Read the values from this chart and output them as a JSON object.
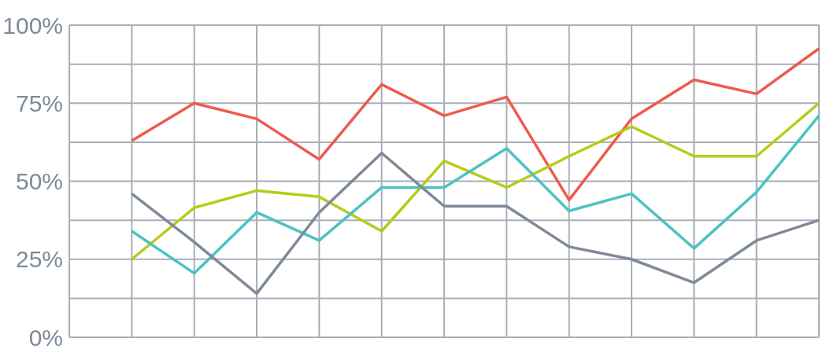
{
  "chart_data": {
    "type": "line",
    "categories": [
      null,
      null,
      null,
      null,
      null,
      null,
      null,
      null,
      null,
      null,
      null,
      null
    ],
    "series": [
      {
        "color": "#ef5a4c",
        "values": [
          63,
          75,
          70,
          57,
          81,
          71,
          77,
          44,
          70,
          82.5,
          78,
          92.5
        ]
      },
      {
        "color": "#b5cc18",
        "values": [
          25,
          41.5,
          47,
          45,
          34,
          56.5,
          48,
          58,
          67.5,
          58,
          58,
          75
        ]
      },
      {
        "color": "#4cc3c1",
        "values": [
          34,
          20.5,
          40,
          31,
          48,
          48,
          60.5,
          40.5,
          46,
          28.5,
          46.5,
          71
        ]
      },
      {
        "color": "#7f8a99",
        "values": [
          46,
          30.5,
          14,
          40,
          59,
          42,
          42,
          29,
          25,
          17.5,
          31,
          37.5
        ]
      }
    ],
    "ylim": [
      0,
      100
    ],
    "yticks": [
      {
        "value": 0,
        "label": "0%"
      },
      {
        "value": 12.5,
        "label": null
      },
      {
        "value": 25,
        "label": "25%"
      },
      {
        "value": 37.5,
        "label": null
      },
      {
        "value": 50,
        "label": "50%"
      },
      {
        "value": 62.5,
        "label": null
      },
      {
        "value": 75,
        "label": "75%"
      },
      {
        "value": 87.5,
        "label": null
      },
      {
        "value": 100,
        "label": "100%"
      }
    ],
    "grid": true,
    "marker": "none",
    "line_style": "solid"
  }
}
